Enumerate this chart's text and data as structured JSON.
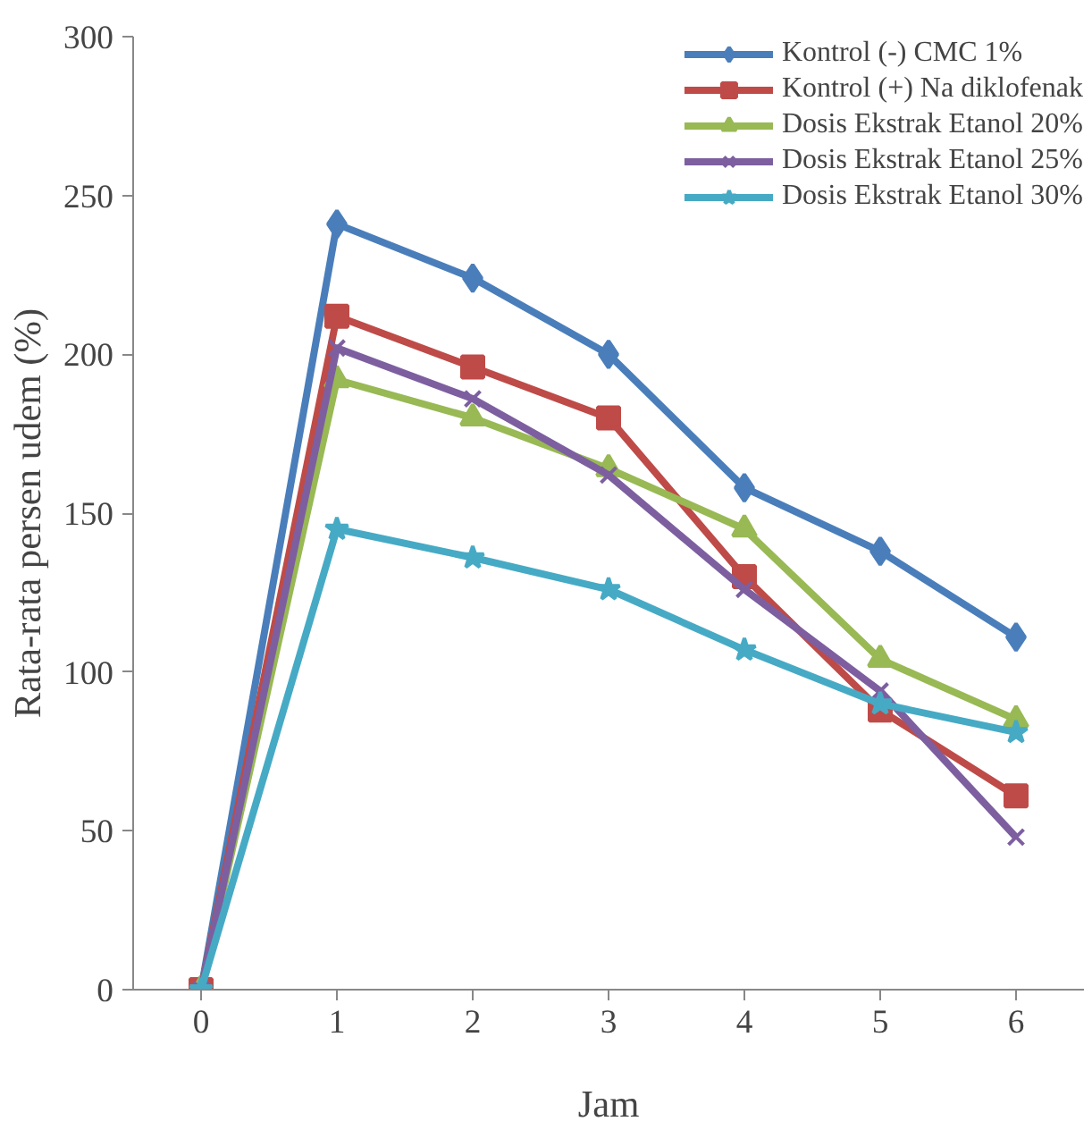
{
  "chart_data": {
    "type": "line",
    "xlabel": "Jam",
    "ylabel": "Rata-rata persen udem (%)",
    "categories": [
      "0",
      "1",
      "2",
      "3",
      "4",
      "5",
      "6"
    ],
    "ylim": [
      0,
      300
    ],
    "yticks": [
      0,
      50,
      100,
      150,
      200,
      250,
      300
    ],
    "grid": false,
    "legend": "top right",
    "series": [
      {
        "name": "Kontrol (-) CMC 1%",
        "color": "#4a7ebb",
        "marker": "diamond",
        "values": [
          0,
          241,
          224,
          200,
          158,
          138,
          111
        ]
      },
      {
        "name": "Kontrol (+) Na diklofenak",
        "color": "#be4b48",
        "marker": "square",
        "values": [
          0,
          212,
          196,
          180,
          130,
          88,
          61
        ]
      },
      {
        "name": "Dosis Ekstrak Etanol 20%",
        "color": "#98b954",
        "marker": "triangle",
        "values": [
          0,
          192,
          180,
          164,
          145,
          104,
          85
        ]
      },
      {
        "name": "Dosis Ekstrak Etanol 25%",
        "color": "#7d5fa0",
        "marker": "cross",
        "values": [
          0,
          202,
          186,
          162,
          126,
          94,
          48
        ]
      },
      {
        "name": "Dosis Ekstrak Etanol 30%",
        "color": "#46aac5",
        "marker": "star",
        "values": [
          0,
          145,
          136,
          126,
          107,
          90,
          81
        ]
      }
    ]
  }
}
